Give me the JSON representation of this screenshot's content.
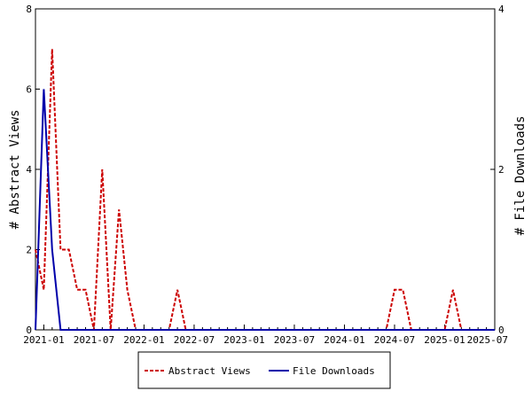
{
  "chart_data": {
    "type": "line",
    "x_label": "",
    "y_left_label": "# Abstract Views",
    "y_right_label": "# File Downloads",
    "y_left_range": [
      0,
      8
    ],
    "y_right_range": [
      0,
      4
    ],
    "y_left_ticks": [
      "0",
      "2",
      "4",
      "6",
      "8"
    ],
    "y_right_ticks": [
      "0",
      "2",
      "4"
    ],
    "x_range": [
      "2020-12",
      "2025-07"
    ],
    "x_ticks": [
      "2021-01",
      "2021-07",
      "2022-01",
      "2022-07",
      "2023-01",
      "2023-07",
      "2024-01",
      "2024-07",
      "2025-01",
      "2025-07"
    ],
    "grid": false,
    "legend_position": "bottom",
    "series": [
      {
        "name": "Abstract Views",
        "axis": "left",
        "color": "#cc0000",
        "style": "dashed",
        "points": [
          [
            "2020-12",
            2
          ],
          [
            "2021-01",
            1
          ],
          [
            "2021-02",
            7
          ],
          [
            "2021-03",
            2
          ],
          [
            "2021-04",
            2
          ],
          [
            "2021-05",
            1
          ],
          [
            "2021-06",
            1
          ],
          [
            "2021-07",
            0
          ],
          [
            "2021-08",
            4
          ],
          [
            "2021-09",
            0
          ],
          [
            "2021-10",
            3
          ],
          [
            "2021-11",
            1
          ],
          [
            "2021-12",
            0
          ],
          [
            "2022-01",
            0
          ],
          [
            "2022-02",
            0
          ],
          [
            "2022-03",
            0
          ],
          [
            "2022-04",
            0
          ],
          [
            "2022-05",
            1
          ],
          [
            "2022-06",
            0
          ],
          [
            "2024-06",
            0
          ],
          [
            "2024-07",
            1
          ],
          [
            "2024-08",
            1
          ],
          [
            "2024-09",
            0
          ],
          [
            "2025-01",
            0
          ],
          [
            "2025-02",
            1
          ],
          [
            "2025-03",
            0
          ],
          [
            "2025-07",
            0
          ]
        ]
      },
      {
        "name": "File Downloads",
        "axis": "right",
        "color": "#0000aa",
        "style": "solid",
        "points": [
          [
            "2020-12",
            0
          ],
          [
            "2021-01",
            3
          ],
          [
            "2021-02",
            1
          ],
          [
            "2021-03",
            0
          ],
          [
            "2025-07",
            0
          ]
        ]
      }
    ]
  }
}
